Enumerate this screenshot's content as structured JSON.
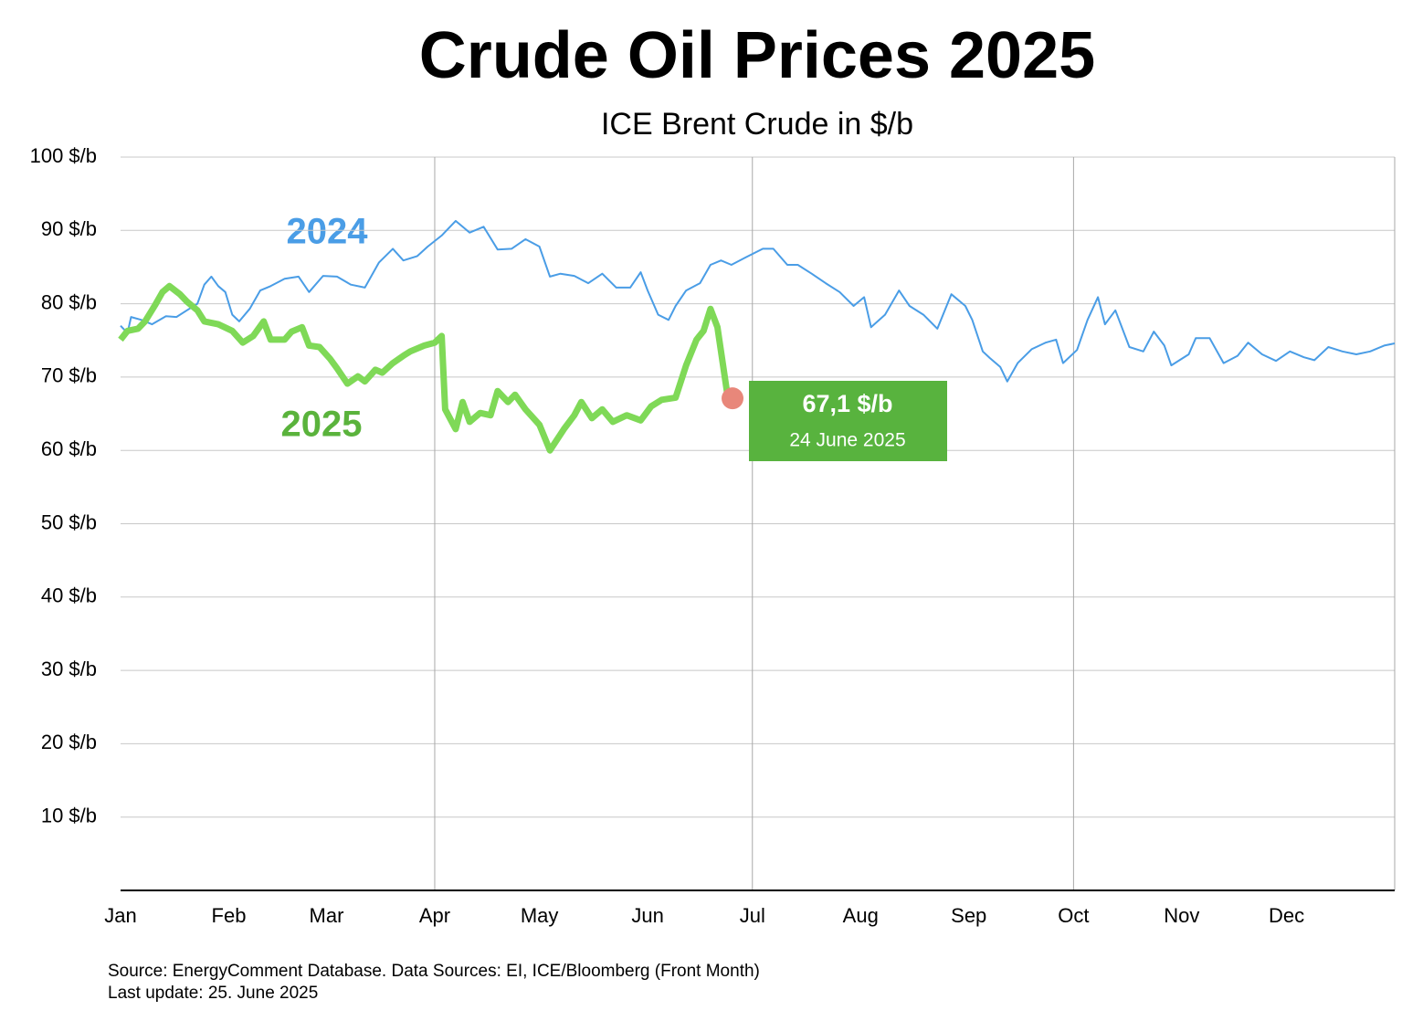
{
  "chart_data": {
    "type": "line",
    "title": "Crude Oil Prices 2025",
    "subtitle": "ICE Brent Crude in $/b",
    "xlim": [
      0,
      365
    ],
    "xticks": [
      {
        "value": 0,
        "label": "Jan"
      },
      {
        "value": 31,
        "label": "Feb"
      },
      {
        "value": 59,
        "label": "Mar"
      },
      {
        "value": 90,
        "label": "Apr"
      },
      {
        "value": 120,
        "label": "May"
      },
      {
        "value": 151,
        "label": "Jun"
      },
      {
        "value": 181,
        "label": "Jul"
      },
      {
        "value": 212,
        "label": "Aug"
      },
      {
        "value": 243,
        "label": "Sep"
      },
      {
        "value": 273,
        "label": "Oct"
      },
      {
        "value": 304,
        "label": "Nov"
      },
      {
        "value": 334,
        "label": "Dec"
      }
    ],
    "ylim": [
      0,
      100
    ],
    "yticks": [
      {
        "value": 10,
        "label": "10 $/b"
      },
      {
        "value": 20,
        "label": "20 $/b"
      },
      {
        "value": 30,
        "label": "30 $/b"
      },
      {
        "value": 40,
        "label": "40 $/b"
      },
      {
        "value": 50,
        "label": "50 $/b"
      },
      {
        "value": 60,
        "label": "60 $/b"
      },
      {
        "value": 70,
        "label": "70 $/b"
      },
      {
        "value": 80,
        "label": "80 $/b"
      },
      {
        "value": 90,
        "label": "90 $/b"
      },
      {
        "value": 100,
        "label": "100 $/b"
      }
    ],
    "grid": true,
    "series": [
      {
        "name": "2024",
        "color": "#4a9de6",
        "x": [
          0,
          2,
          3,
          6,
          9,
          13,
          16,
          19,
          22,
          24,
          26,
          28,
          30,
          32,
          34,
          37,
          40,
          43,
          47,
          51,
          54,
          58,
          62,
          66,
          70,
          74,
          78,
          81,
          85,
          88,
          92,
          96,
          100,
          104,
          108,
          112,
          116,
          120,
          123,
          126,
          130,
          134,
          138,
          142,
          146,
          149,
          151,
          154,
          157,
          159,
          162,
          166,
          169,
          172,
          175,
          179,
          184,
          187,
          191,
          194,
          198,
          202,
          206,
          210,
          213,
          215,
          219,
          223,
          226,
          230,
          234,
          238,
          242,
          244,
          247,
          249,
          252,
          254,
          257,
          261,
          265,
          268,
          270,
          274,
          277,
          280,
          282,
          285,
          289,
          293,
          296,
          299,
          301,
          306,
          308,
          312,
          316,
          320,
          323,
          327,
          331,
          335,
          339,
          342,
          346,
          350,
          354,
          358,
          362,
          365
        ],
        "values": [
          77.0,
          76.0,
          78.2,
          77.8,
          77.2,
          78.3,
          78.2,
          79.1,
          80.0,
          82.6,
          83.7,
          82.4,
          81.6,
          78.5,
          77.6,
          79.3,
          81.8,
          82.4,
          83.4,
          83.7,
          81.6,
          83.8,
          83.7,
          82.6,
          82.2,
          85.6,
          87.5,
          85.9,
          86.5,
          87.8,
          89.3,
          91.3,
          89.7,
          90.5,
          87.4,
          87.5,
          88.8,
          87.8,
          83.7,
          84.1,
          83.8,
          82.8,
          84.1,
          82.2,
          82.2,
          84.3,
          81.8,
          78.5,
          77.8,
          79.7,
          81.8,
          82.8,
          85.3,
          85.9,
          85.3,
          86.3,
          87.5,
          87.5,
          85.3,
          85.3,
          84.1,
          82.8,
          81.6,
          79.7,
          80.9,
          76.8,
          78.5,
          81.8,
          79.7,
          78.5,
          76.6,
          81.3,
          79.7,
          77.8,
          73.5,
          72.6,
          71.4,
          69.4,
          71.9,
          73.8,
          74.7,
          75.1,
          71.9,
          73.7,
          77.8,
          80.9,
          77.2,
          79.1,
          74.1,
          73.5,
          76.2,
          74.3,
          71.6,
          73.1,
          75.3,
          75.3,
          71.9,
          72.9,
          74.7,
          73.1,
          72.2,
          73.5,
          72.7,
          72.3,
          74.1,
          73.5,
          73.1,
          73.5,
          74.3,
          74.6
        ]
      },
      {
        "name": "2025",
        "color": "#7fd957",
        "x": [
          0,
          2,
          5,
          7,
          10,
          12,
          14,
          17,
          19,
          22,
          24,
          28,
          32,
          35,
          38,
          41,
          43,
          47,
          49,
          52,
          54,
          57,
          60,
          62,
          65,
          68,
          70,
          73,
          75,
          78,
          81,
          83,
          87,
          90,
          92,
          93,
          96,
          98,
          100,
          103,
          106,
          108,
          111,
          113,
          116,
          120,
          123,
          127,
          130,
          132,
          135,
          138,
          141,
          145,
          149,
          152,
          155,
          159,
          162,
          165,
          167,
          169,
          171,
          174
        ],
        "values": [
          75.1,
          76.3,
          76.6,
          77.6,
          79.9,
          81.6,
          82.4,
          81.3,
          80.3,
          79.1,
          77.6,
          77.2,
          76.3,
          74.7,
          75.6,
          77.6,
          75.1,
          75.1,
          76.2,
          76.8,
          74.3,
          74.1,
          72.5,
          71.2,
          69.1,
          70.1,
          69.4,
          71.0,
          70.6,
          71.9,
          72.9,
          73.5,
          74.3,
          74.7,
          75.6,
          65.6,
          62.9,
          66.6,
          63.9,
          65.1,
          64.8,
          68.1,
          66.6,
          67.6,
          65.6,
          63.5,
          60.0,
          62.9,
          64.8,
          66.6,
          64.4,
          65.6,
          63.9,
          64.8,
          64.1,
          66.0,
          66.9,
          67.2,
          71.6,
          75.1,
          76.3,
          79.3,
          76.8,
          67.1
        ]
      }
    ],
    "annotation": {
      "x": 174,
      "value": 67.1,
      "label": "67,1 $/b",
      "date": "24 June 2025"
    },
    "source": "Source: EnergyComment Database. Data Sources: EI, ICE/Bloomberg (Front Month)",
    "updated": "Last update: 25. June 2025"
  }
}
